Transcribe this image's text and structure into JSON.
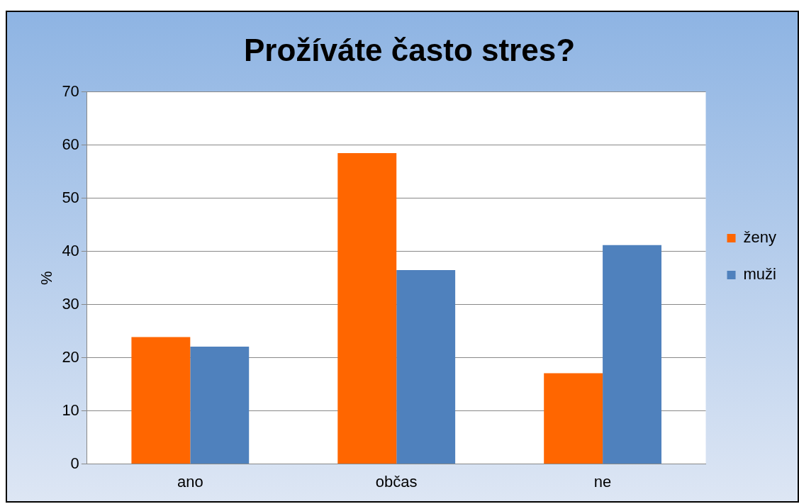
{
  "chart_data": {
    "type": "bar",
    "title": "Prožíváte často stres?",
    "ylabel": "%",
    "categories": [
      "ano",
      "občas",
      "ne"
    ],
    "series": [
      {
        "name": "ženy",
        "color": "#ff6600",
        "values": [
          23.9,
          58.5,
          17.1
        ]
      },
      {
        "name": "muži",
        "color": "#4f81bd",
        "values": [
          22.1,
          36.5,
          41.2
        ]
      }
    ],
    "ylim": [
      0,
      70
    ],
    "yticks": [
      0,
      10,
      20,
      30,
      40,
      50,
      60,
      70
    ],
    "grid": "y",
    "legend": "right"
  }
}
